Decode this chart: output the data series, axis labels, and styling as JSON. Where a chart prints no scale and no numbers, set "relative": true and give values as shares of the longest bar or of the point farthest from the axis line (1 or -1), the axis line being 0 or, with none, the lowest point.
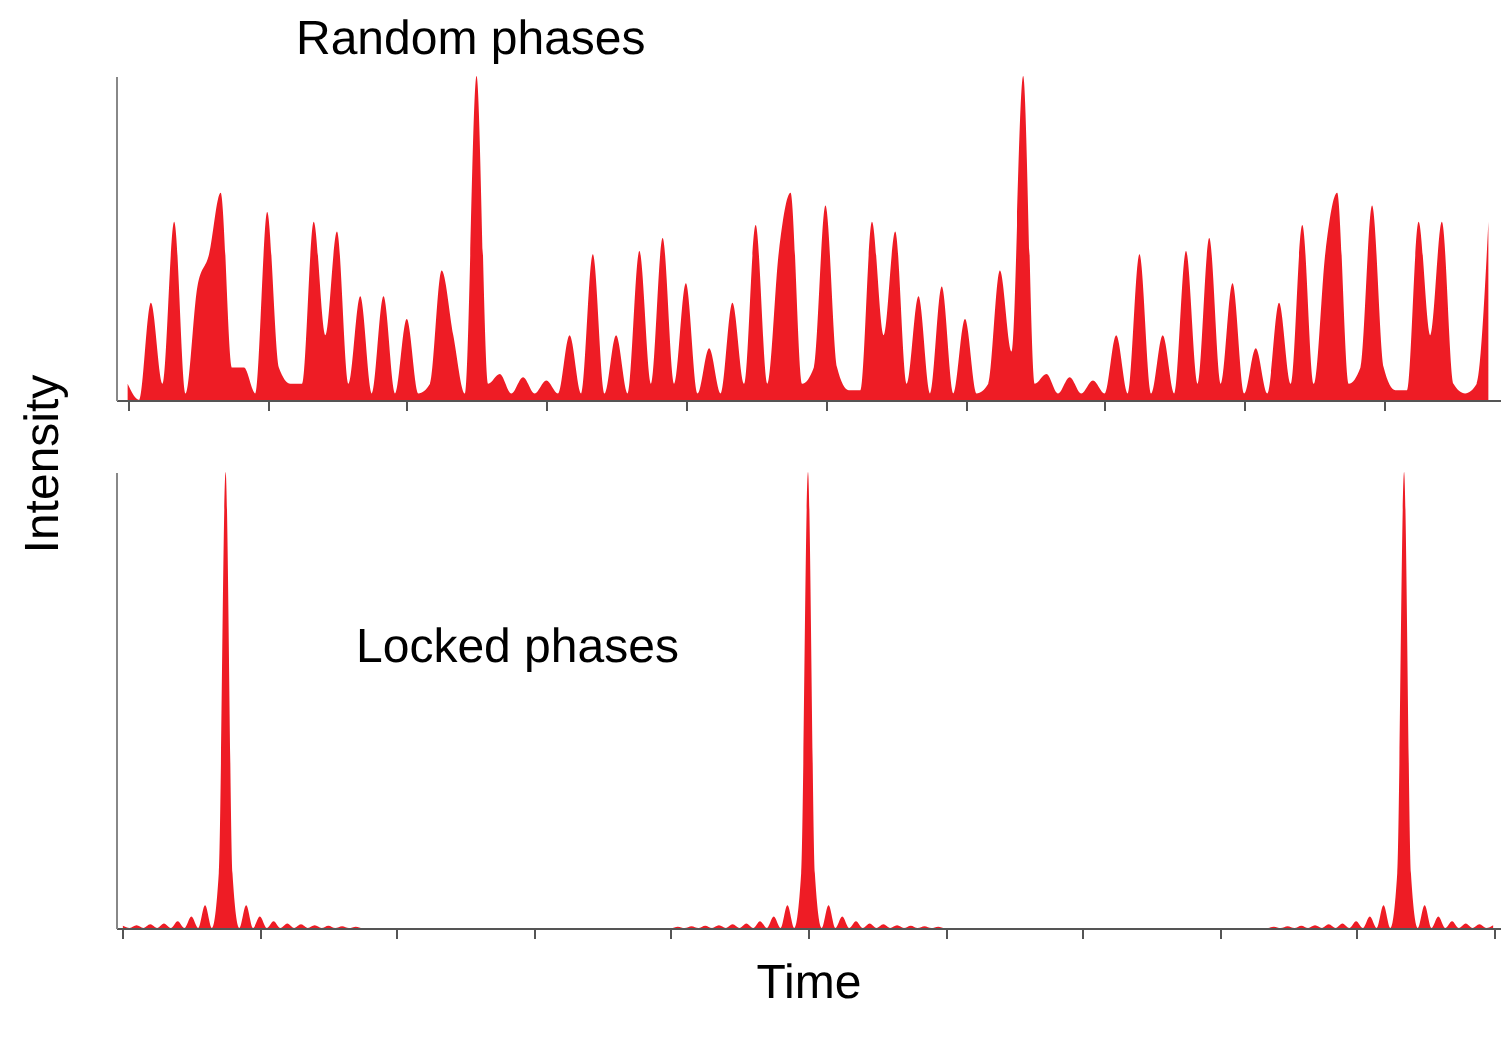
{
  "chart_data": [
    {
      "type": "area",
      "title": "Random phases",
      "relative": true,
      "tick_labels": false,
      "ylabel": "Intensity",
      "categories": [
        null,
        null,
        null,
        null,
        null,
        null,
        null,
        null,
        null,
        null,
        null,
        null,
        null,
        null,
        null,
        null,
        null,
        null,
        null,
        null,
        null,
        null,
        null,
        null,
        null,
        null,
        null,
        null,
        null,
        null,
        null,
        null,
        null,
        null,
        null,
        null,
        null,
        null,
        null,
        null,
        null,
        null,
        null,
        null,
        null,
        null,
        null,
        null,
        null,
        null,
        null,
        null,
        null,
        null,
        null,
        null,
        null,
        null,
        null,
        null,
        null,
        null,
        null,
        null,
        null,
        null,
        null,
        null,
        null,
        null,
        null,
        null,
        null,
        null,
        null,
        null,
        null,
        null,
        null,
        null,
        null,
        null,
        null,
        null,
        null,
        null,
        null,
        null,
        null,
        null,
        null,
        null,
        null,
        null,
        null,
        null,
        null,
        null,
        null,
        null,
        null,
        null,
        null,
        null,
        null,
        null,
        null,
        null,
        null,
        null,
        null,
        null,
        null,
        null,
        null,
        null,
        null,
        null
      ],
      "series": [
        {
          "color": "#ee1c25",
          "values": [
            0.05,
            0,
            0.3,
            0.05,
            0.55,
            0.02,
            0.35,
            0.45,
            0.64,
            0.1,
            0.1,
            0.02,
            0.58,
            0.1,
            0.05,
            0.05,
            0.55,
            0.2,
            0.52,
            0.05,
            0.32,
            0.02,
            0.32,
            0.02,
            0.25,
            0.02,
            0.05,
            0.4,
            0.2,
            0.02,
            1,
            0.05,
            0.08,
            0.02,
            0.07,
            0.02,
            0.06,
            0.02,
            0.2,
            0.02,
            0.45,
            0.02,
            0.2,
            0.02,
            0.46,
            0.05,
            0.5,
            0.05,
            0.36,
            0.02,
            0.16,
            0.02,
            0.3,
            0.05,
            0.54,
            0.05,
            0.46,
            0.64,
            0.05,
            0.1,
            0.6,
            0.1,
            0.03,
            0.03,
            0.55,
            0.2,
            0.52,
            0.05,
            0.32,
            0.02,
            0.35,
            0.02,
            0.25,
            0.02,
            0.05,
            0.4,
            0.15,
            1,
            0.05,
            0.08,
            0.02,
            0.07,
            0.02,
            0.06,
            0.02,
            0.2,
            0.02,
            0.45,
            0.02,
            0.2,
            0.02,
            0.46,
            0.05,
            0.5,
            0.05,
            0.36,
            0.02,
            0.16,
            0.02,
            0.3,
            0.05,
            0.54,
            0.05,
            0.46,
            0.64,
            0.05,
            0.1,
            0.6,
            0.1,
            0.03,
            0.03,
            0.55,
            0.2,
            0.55,
            0.05,
            0.02,
            0.05,
            0.55
          ]
        }
      ]
    },
    {
      "type": "area",
      "title": "Locked phases",
      "relative": true,
      "tick_labels": false,
      "xlabel": "Time",
      "categories": [
        null,
        null,
        null,
        null,
        null,
        null,
        null,
        null,
        null,
        null,
        null,
        null,
        null,
        null,
        null,
        null,
        null,
        null,
        null,
        null,
        null,
        null,
        null,
        null,
        null,
        null,
        null,
        null,
        null,
        null,
        null,
        null,
        null,
        null,
        null,
        null,
        null,
        null,
        null,
        null,
        null,
        null,
        null,
        null,
        null,
        null,
        null,
        null,
        null,
        null,
        null,
        null,
        null,
        null,
        null,
        null,
        null,
        null,
        null,
        null,
        null,
        null,
        null,
        null,
        null,
        null,
        null,
        null,
        null,
        null,
        null,
        null,
        null,
        null,
        null,
        null,
        null,
        null,
        null,
        null,
        null,
        null,
        null,
        null,
        null,
        null,
        null,
        null,
        null,
        null,
        null,
        null,
        null,
        null,
        null,
        null,
        null,
        null,
        null,
        null,
        null,
        null,
        null,
        null,
        null,
        null,
        null,
        null,
        null,
        null,
        null,
        null,
        null,
        null,
        null,
        null,
        null,
        null,
        null,
        null,
        null,
        null,
        null,
        null,
        null,
        null,
        null,
        null,
        null,
        null,
        null,
        null,
        null,
        null,
        null,
        null,
        null,
        null,
        null,
        null,
        null,
        null,
        null,
        null,
        null,
        null,
        null,
        null,
        null,
        null,
        null,
        null,
        null,
        null,
        null,
        null,
        null,
        null,
        null,
        null,
        null,
        null,
        null,
        null,
        null,
        null,
        null,
        null,
        null,
        null,
        null,
        null,
        null,
        null,
        null,
        null,
        null,
        null,
        null,
        null,
        null,
        null,
        null,
        null,
        null,
        null,
        null,
        null,
        null,
        null,
        null,
        null,
        null,
        null,
        null,
        null,
        null,
        null,
        null,
        null,
        null
      ],
      "series": [
        {
          "color": "#ee1c25",
          "values": [
            0.005,
            0,
            0.006,
            0,
            0.008,
            0,
            0.01,
            0,
            0.015,
            0,
            0.025,
            0,
            0.05,
            0,
            0.12,
            1,
            0.12,
            0,
            0.05,
            0,
            0.025,
            0,
            0.015,
            0,
            0.01,
            0,
            0.008,
            0,
            0.006,
            0,
            0.005,
            0,
            0.004,
            0,
            0.003,
            0,
            0,
            0,
            0,
            0,
            0,
            0,
            0,
            0,
            0,
            0,
            0,
            0,
            0,
            0,
            0,
            0,
            0,
            0,
            0,
            0,
            0,
            0,
            0,
            0,
            0,
            0,
            0,
            0,
            0,
            0,
            0,
            0,
            0,
            0,
            0,
            0,
            0,
            0,
            0,
            0,
            0,
            0,
            0,
            0,
            0,
            0.003,
            0,
            0.004,
            0,
            0.005,
            0,
            0.006,
            0,
            0.008,
            0,
            0.01,
            0,
            0.015,
            0,
            0.025,
            0,
            0.05,
            0,
            0.12,
            1,
            0.12,
            0,
            0.05,
            0,
            0.025,
            0,
            0.015,
            0,
            0.01,
            0,
            0.008,
            0,
            0.006,
            0,
            0.005,
            0,
            0.004,
            0,
            0.003,
            0,
            0,
            0,
            0,
            0,
            0,
            0,
            0,
            0,
            0,
            0,
            0,
            0,
            0,
            0,
            0,
            0,
            0,
            0,
            0,
            0,
            0,
            0,
            0,
            0,
            0,
            0,
            0,
            0,
            0,
            0,
            0,
            0,
            0,
            0,
            0,
            0,
            0,
            0,
            0,
            0,
            0,
            0,
            0,
            0,
            0,
            0,
            0,
            0.003,
            0,
            0.004,
            0,
            0.005,
            0,
            0.006,
            0,
            0.008,
            0,
            0.01,
            0,
            0.015,
            0,
            0.025,
            0,
            0.05,
            0,
            0.12,
            1,
            0.12,
            0,
            0.05,
            0,
            0.025,
            0,
            0.015,
            0,
            0.01,
            0,
            0.008,
            0,
            0.006
          ]
        }
      ]
    }
  ]
}
